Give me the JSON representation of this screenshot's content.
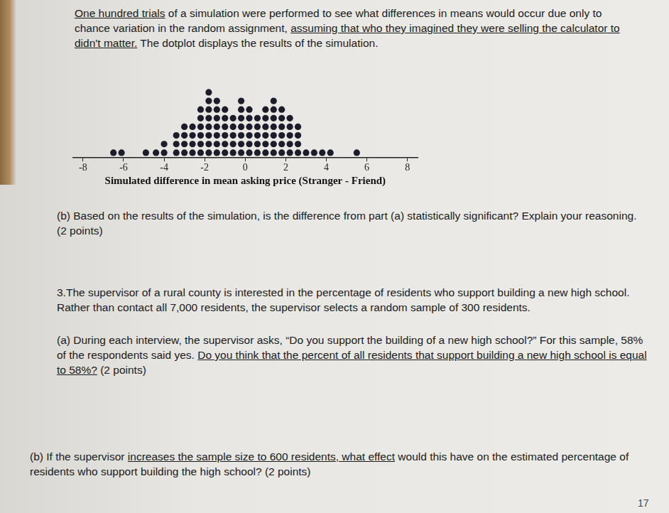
{
  "document": {
    "intro": [
      {
        "text": "One hundred trials",
        "underline": true
      },
      {
        "text": " of a simulation were performed to see what differences in means would occur due only to chance variation in the random assignment, ",
        "underline": false
      },
      {
        "text": "assuming that who they imagined they were selling the calculator to didn't matter.",
        "underline": true
      },
      {
        "text": " The dotplot displays the results of the simulation.",
        "underline": false
      }
    ],
    "question_2b": [
      {
        "text": "(b) Based on the results of the simulation, is the difference from part (a) statistically significant? Explain your reasoning. (2 points)",
        "underline": false
      }
    ],
    "question_3": [
      {
        "text": "3.The supervisor of a rural county is interested in the percentage of residents who support building a new high school. Rather than contact all 7,000 residents, the supervisor selects a random sample of 300 residents.",
        "underline": false
      }
    ],
    "question_3a": [
      {
        "text": "(a) During each interview, the supervisor asks, “Do you support the building of a new high school?” For this sample, 58% of the respondents said yes. ",
        "underline": false
      },
      {
        "text": "Do you think that the percent of all residents that support building a new high school is equal to 58%?",
        "underline": true
      },
      {
        "text": " (2 points)",
        "underline": false
      }
    ],
    "question_3b": [
      {
        "text": "(b) If the supervisor ",
        "underline": false
      },
      {
        "text": "increases the sample size to 600 residents, what effect",
        "underline": true
      },
      {
        "text": " would this have on the estimated percentage of residents who support building the high school? (2 points)",
        "underline": false
      }
    ],
    "page_number": "17"
  },
  "chart_data": {
    "type": "dotplot",
    "xlabel": "Simulated difference in mean asking price (Stranger - Friend)",
    "x": [
      -6.5,
      -6.1,
      -4.9,
      -4.4,
      -4.0,
      -3.4,
      -3.0,
      -2.6,
      -2.2,
      -1.8,
      -1.4,
      -1.0,
      -0.6,
      -0.2,
      0.2,
      0.6,
      1.0,
      1.4,
      1.8,
      2.2,
      2.6,
      3.0,
      3.4,
      3.8,
      4.2,
      5.5
    ],
    "counts": [
      1,
      1,
      1,
      1,
      2,
      3,
      4,
      4,
      6,
      8,
      7,
      6,
      5,
      7,
      6,
      5,
      6,
      7,
      6,
      5,
      4,
      1,
      1,
      1,
      1,
      1
    ],
    "xlim": [
      -8.5,
      8.5
    ],
    "xticks": [
      -8,
      -6,
      -4,
      -2,
      0,
      2,
      4,
      6,
      8
    ],
    "color": "#1c1c2a",
    "marker": "circle",
    "grid": false,
    "tick_labels": "x"
  }
}
